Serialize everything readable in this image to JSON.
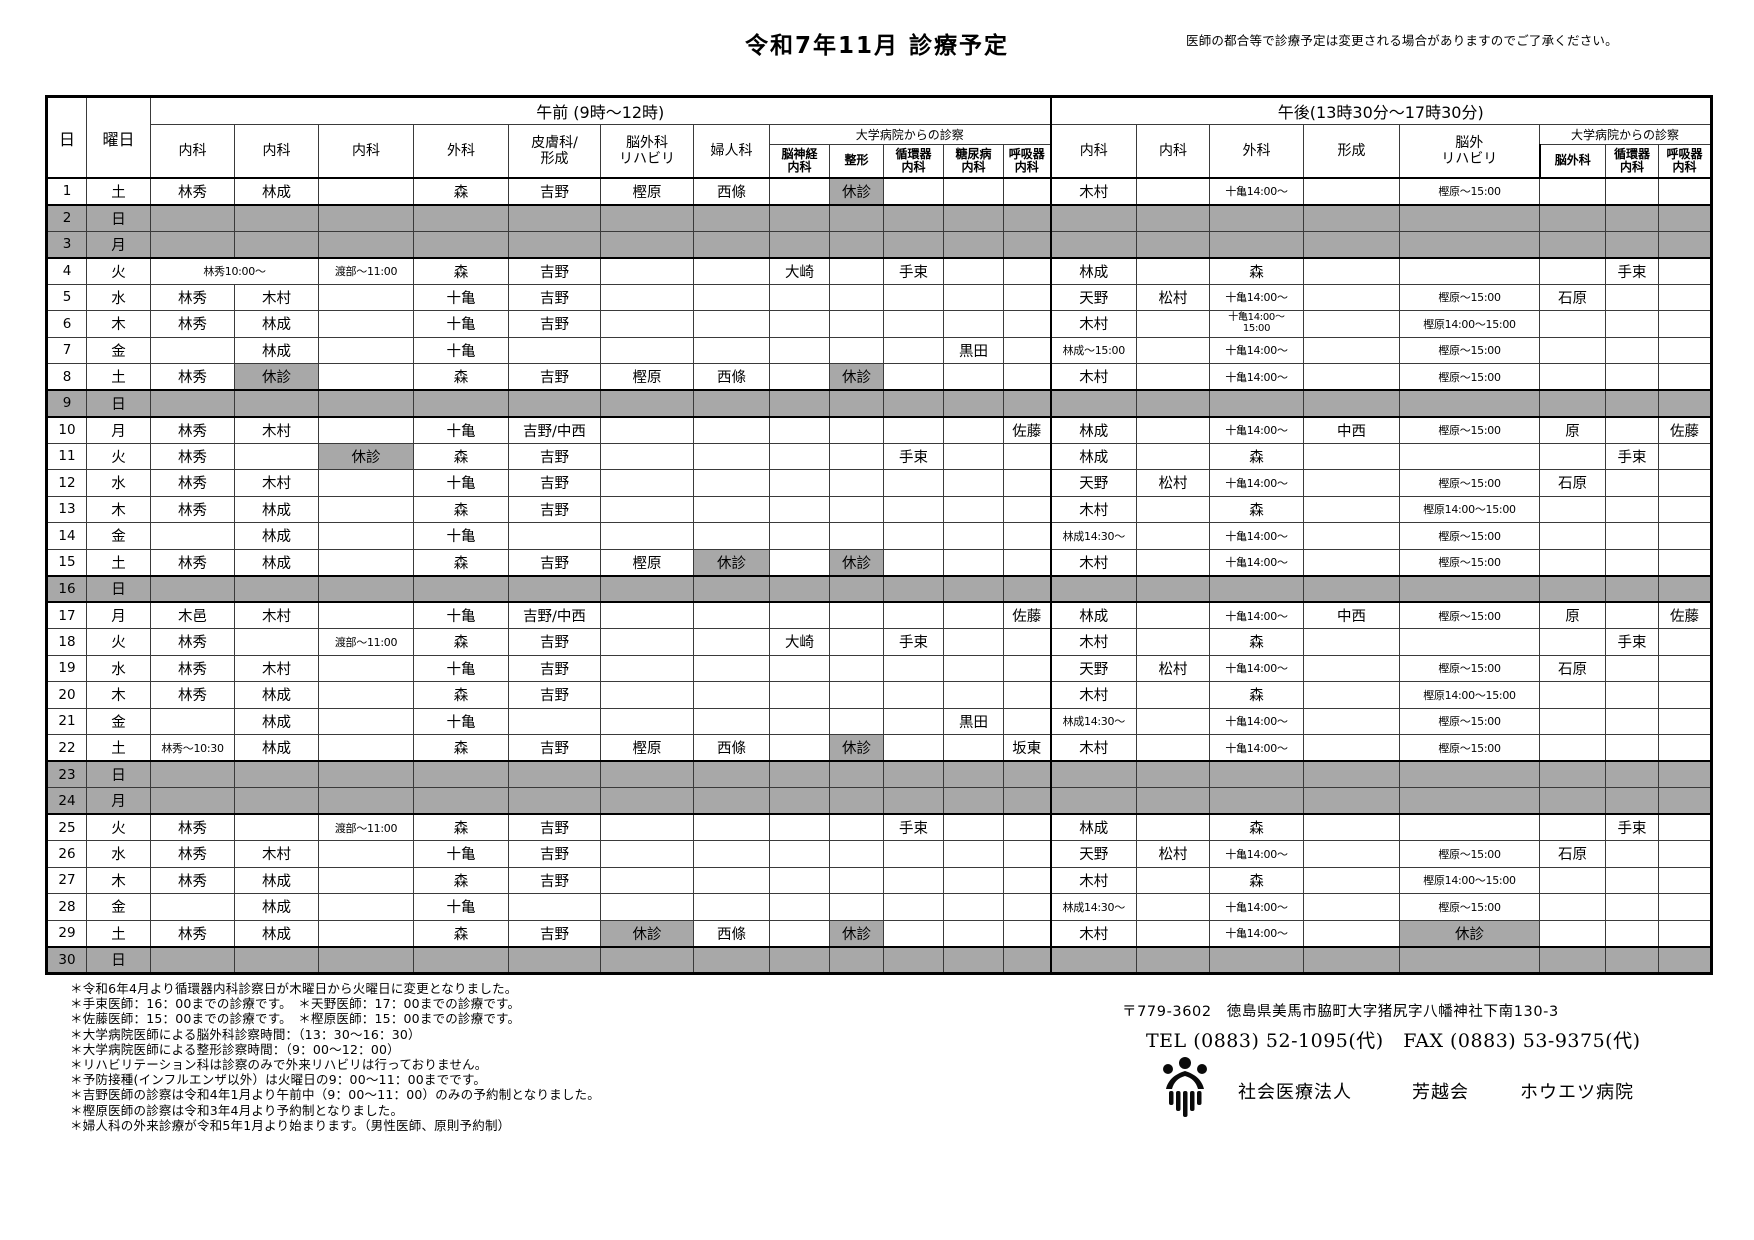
{
  "page": {
    "title": "令和7年11月 診療予定",
    "disclaimer": "医師の都合等で診療予定は変更される場合がありますのでご了承ください。"
  },
  "table": {
    "corner": {
      "day": "日",
      "weekday": "曜日"
    },
    "morning": {
      "label": "午前 (9時～12時)",
      "cols": [
        "内科",
        "内科",
        "内科",
        "外科",
        "皮膚科/\n形成",
        "脳外科\nリハビリ",
        "婦人科"
      ],
      "univ_label": "大学病院からの診察",
      "univ_cols": [
        "脳神経\n内科",
        "整形",
        "循環器\n内科",
        "糖尿病\n内科",
        "呼吸器\n内科"
      ]
    },
    "afternoon": {
      "label": "午後(13時30分～17時30分)",
      "cols": [
        "内科",
        "内科",
        "外科",
        "形成",
        "脳外\nリハビリ"
      ],
      "univ_label": "大学病院からの診察",
      "univ_cols": [
        "脳外科",
        "循環器\n内科",
        "呼吸器\n内科"
      ]
    },
    "rows": [
      {
        "day": "1",
        "weekday": "土",
        "holiday": false,
        "cells": [
          "林秀",
          "林成",
          "",
          "森",
          "吉野",
          "樫原",
          "西條",
          "",
          {
            "t": "休診",
            "g": 1
          },
          "",
          "",
          "",
          "木村",
          "",
          "十亀14:00～",
          "",
          "樫原～15:00",
          "",
          "",
          ""
        ]
      },
      {
        "day": "2",
        "weekday": "日",
        "holiday": true,
        "cells": []
      },
      {
        "day": "3",
        "weekday": "月",
        "holiday": true,
        "cells": []
      },
      {
        "day": "4",
        "weekday": "火",
        "holiday": false,
        "cells": [
          {
            "t": "林秀10:00～",
            "span": 2
          },
          "渡部～11:00",
          "森",
          "吉野",
          "",
          "",
          "大崎",
          "",
          "手束",
          "",
          "",
          "林成",
          "",
          "森",
          "",
          "",
          "",
          "手束",
          ""
        ]
      },
      {
        "day": "5",
        "weekday": "水",
        "holiday": false,
        "cells": [
          "林秀",
          "木村",
          "",
          "十亀",
          "吉野",
          "",
          "",
          "",
          "",
          "",
          "",
          "",
          "天野",
          "松村",
          "十亀14:00～",
          "",
          "樫原～15:00",
          "石原",
          "",
          ""
        ]
      },
      {
        "day": "6",
        "weekday": "木",
        "holiday": false,
        "cells": [
          "林秀",
          "林成",
          "",
          "十亀",
          "吉野",
          "",
          "",
          "",
          "",
          "",
          "",
          "",
          "木村",
          "",
          "十亀14:00～\n15:00",
          "",
          "樫原14:00～15:00",
          "",
          "",
          ""
        ]
      },
      {
        "day": "7",
        "weekday": "金",
        "holiday": false,
        "cells": [
          "",
          "林成",
          "",
          "十亀",
          "",
          "",
          "",
          "",
          "",
          "",
          "黒田",
          "",
          "林成～15:00",
          "",
          "十亀14:00～",
          "",
          "樫原～15:00",
          "",
          "",
          ""
        ]
      },
      {
        "day": "8",
        "weekday": "土",
        "holiday": false,
        "cells": [
          "林秀",
          {
            "t": "休診",
            "g": 1
          },
          "",
          "森",
          "吉野",
          "樫原",
          "西條",
          "",
          {
            "t": "休診",
            "g": 1
          },
          "",
          "",
          "",
          "木村",
          "",
          "十亀14:00～",
          "",
          "樫原～15:00",
          "",
          "",
          ""
        ]
      },
      {
        "day": "9",
        "weekday": "日",
        "holiday": true,
        "cells": []
      },
      {
        "day": "10",
        "weekday": "月",
        "holiday": false,
        "cells": [
          "林秀",
          "木村",
          "",
          "十亀",
          "吉野/中西",
          "",
          "",
          "",
          "",
          "",
          "",
          "佐藤",
          "林成",
          "",
          "十亀14:00～",
          "中西",
          "樫原～15:00",
          "原",
          "",
          "佐藤"
        ]
      },
      {
        "day": "11",
        "weekday": "火",
        "holiday": false,
        "cells": [
          "林秀",
          "",
          {
            "t": "休診",
            "g": 1
          },
          "森",
          "吉野",
          "",
          "",
          "",
          "",
          "手束",
          "",
          "",
          "林成",
          "",
          "森",
          "",
          "",
          "",
          "手束",
          ""
        ]
      },
      {
        "day": "12",
        "weekday": "水",
        "holiday": false,
        "cells": [
          "林秀",
          "木村",
          "",
          "十亀",
          "吉野",
          "",
          "",
          "",
          "",
          "",
          "",
          "",
          "天野",
          "松村",
          "十亀14:00～",
          "",
          "樫原～15:00",
          "石原",
          "",
          ""
        ]
      },
      {
        "day": "13",
        "weekday": "木",
        "holiday": false,
        "cells": [
          "林秀",
          "林成",
          "",
          "森",
          "吉野",
          "",
          "",
          "",
          "",
          "",
          "",
          "",
          "木村",
          "",
          "森",
          "",
          "樫原14:00～15:00",
          "",
          "",
          ""
        ]
      },
      {
        "day": "14",
        "weekday": "金",
        "holiday": false,
        "cells": [
          "",
          "林成",
          "",
          "十亀",
          "",
          "",
          "",
          "",
          "",
          "",
          "",
          "",
          "林成14:30～",
          "",
          "十亀14:00～",
          "",
          "樫原～15:00",
          "",
          "",
          ""
        ]
      },
      {
        "day": "15",
        "weekday": "土",
        "holiday": false,
        "cells": [
          "林秀",
          "林成",
          "",
          "森",
          "吉野",
          "樫原",
          {
            "t": "休診",
            "g": 1
          },
          "",
          {
            "t": "休診",
            "g": 1
          },
          "",
          "",
          "",
          "木村",
          "",
          "十亀14:00～",
          "",
          "樫原～15:00",
          "",
          "",
          ""
        ]
      },
      {
        "day": "16",
        "weekday": "日",
        "holiday": true,
        "cells": []
      },
      {
        "day": "17",
        "weekday": "月",
        "holiday": false,
        "cells": [
          "木邑",
          "木村",
          "",
          "十亀",
          "吉野/中西",
          "",
          "",
          "",
          "",
          "",
          "",
          "佐藤",
          "林成",
          "",
          "十亀14:00～",
          "中西",
          "樫原～15:00",
          "原",
          "",
          "佐藤"
        ]
      },
      {
        "day": "18",
        "weekday": "火",
        "holiday": false,
        "cells": [
          "林秀",
          "",
          "渡部～11:00",
          "森",
          "吉野",
          "",
          "",
          "大崎",
          "",
          "手束",
          "",
          "",
          "木村",
          "",
          "森",
          "",
          "",
          "",
          "手束",
          ""
        ]
      },
      {
        "day": "19",
        "weekday": "水",
        "holiday": false,
        "cells": [
          "林秀",
          "木村",
          "",
          "十亀",
          "吉野",
          "",
          "",
          "",
          "",
          "",
          "",
          "",
          "天野",
          "松村",
          "十亀14:00～",
          "",
          "樫原～15:00",
          "石原",
          "",
          ""
        ]
      },
      {
        "day": "20",
        "weekday": "木",
        "holiday": false,
        "cells": [
          "林秀",
          "林成",
          "",
          "森",
          "吉野",
          "",
          "",
          "",
          "",
          "",
          "",
          "",
          "木村",
          "",
          "森",
          "",
          "樫原14:00～15:00",
          "",
          "",
          ""
        ]
      },
      {
        "day": "21",
        "weekday": "金",
        "holiday": false,
        "cells": [
          "",
          "林成",
          "",
          "十亀",
          "",
          "",
          "",
          "",
          "",
          "",
          "黒田",
          "",
          "林成14:30～",
          "",
          "十亀14:00～",
          "",
          "樫原～15:00",
          "",
          "",
          ""
        ]
      },
      {
        "day": "22",
        "weekday": "土",
        "holiday": false,
        "cells": [
          "林秀～10:30",
          "林成",
          "",
          "森",
          "吉野",
          "樫原",
          "西條",
          "",
          {
            "t": "休診",
            "g": 1
          },
          "",
          "",
          "坂東",
          "木村",
          "",
          "十亀14:00～",
          "",
          "樫原～15:00",
          "",
          "",
          ""
        ]
      },
      {
        "day": "23",
        "weekday": "日",
        "holiday": true,
        "cells": []
      },
      {
        "day": "24",
        "weekday": "月",
        "holiday": true,
        "cells": []
      },
      {
        "day": "25",
        "weekday": "火",
        "holiday": false,
        "cells": [
          "林秀",
          "",
          "渡部～11:00",
          "森",
          "吉野",
          "",
          "",
          "",
          "",
          "手束",
          "",
          "",
          "林成",
          "",
          "森",
          "",
          "",
          "",
          "手束",
          ""
        ]
      },
      {
        "day": "26",
        "weekday": "水",
        "holiday": false,
        "cells": [
          "林秀",
          "木村",
          "",
          "十亀",
          "吉野",
          "",
          "",
          "",
          "",
          "",
          "",
          "",
          "天野",
          "松村",
          "十亀14:00～",
          "",
          "樫原～15:00",
          "石原",
          "",
          ""
        ]
      },
      {
        "day": "27",
        "weekday": "木",
        "holiday": false,
        "cells": [
          "林秀",
          "林成",
          "",
          "森",
          "吉野",
          "",
          "",
          "",
          "",
          "",
          "",
          "",
          "木村",
          "",
          "森",
          "",
          "樫原14:00～15:00",
          "",
          "",
          ""
        ]
      },
      {
        "day": "28",
        "weekday": "金",
        "holiday": false,
        "cells": [
          "",
          "林成",
          "",
          "十亀",
          "",
          "",
          "",
          "",
          "",
          "",
          "",
          "",
          "林成14:30～",
          "",
          "十亀14:00～",
          "",
          "樫原～15:00",
          "",
          "",
          ""
        ]
      },
      {
        "day": "29",
        "weekday": "土",
        "holiday": false,
        "cells": [
          "林秀",
          "林成",
          "",
          "森",
          "吉野",
          {
            "t": "休診",
            "g": 1
          },
          "西條",
          "",
          {
            "t": "休診",
            "g": 1
          },
          "",
          "",
          "",
          "木村",
          "",
          "十亀14:00～",
          "",
          {
            "t": "休診",
            "g": 1
          },
          "",
          "",
          ""
        ]
      },
      {
        "day": "30",
        "weekday": "日",
        "holiday": true,
        "cells": []
      }
    ]
  },
  "notes": [
    "＊令和6年4月より循環器内科診察日が木曜日から火曜日に変更となりました。",
    "＊手束医師：16：00までの診療です。　＊天野医師：17：00までの診療です。",
    "＊佐藤医師：15：00までの診療です。　＊樫原医師：15：00までの診療です。",
    "＊大学病院医師による脳外科診察時間：（13：30～16：30）",
    "＊大学病院医師による整形診察時間：（9：00～12：00）",
    "＊リハビリテーション科は診察のみで外来リハビリは行っておりません。",
    "＊予防接種(インフルエンザ以外）は火曜日の9：00～11：00までです。",
    "＊吉野医師の診察は令和4年1月より午前中（9：00～11：00）のみの予約制となりました。",
    "＊樫原医師の診察は令和3年4月より予約制となりました。",
    "＊婦人科の外来診療が令和5年1月より始まります。（男性医師、原則予約制）"
  ],
  "footer": {
    "address": "〒779-3602　徳島県美馬市脇町大字猪尻字八幡神社下南130-3",
    "tel_fax": "TEL (0883) 52-1095(代)　FAX (0883) 53-9375(代)",
    "org_type": "社会医療法人",
    "org_name": "芳越会",
    "hospital_name": "ホウエツ病院",
    "logo_icon": "hospital-emblem-icon",
    "closed_text": "休診",
    "closed_gray": "#a8a8a8"
  }
}
